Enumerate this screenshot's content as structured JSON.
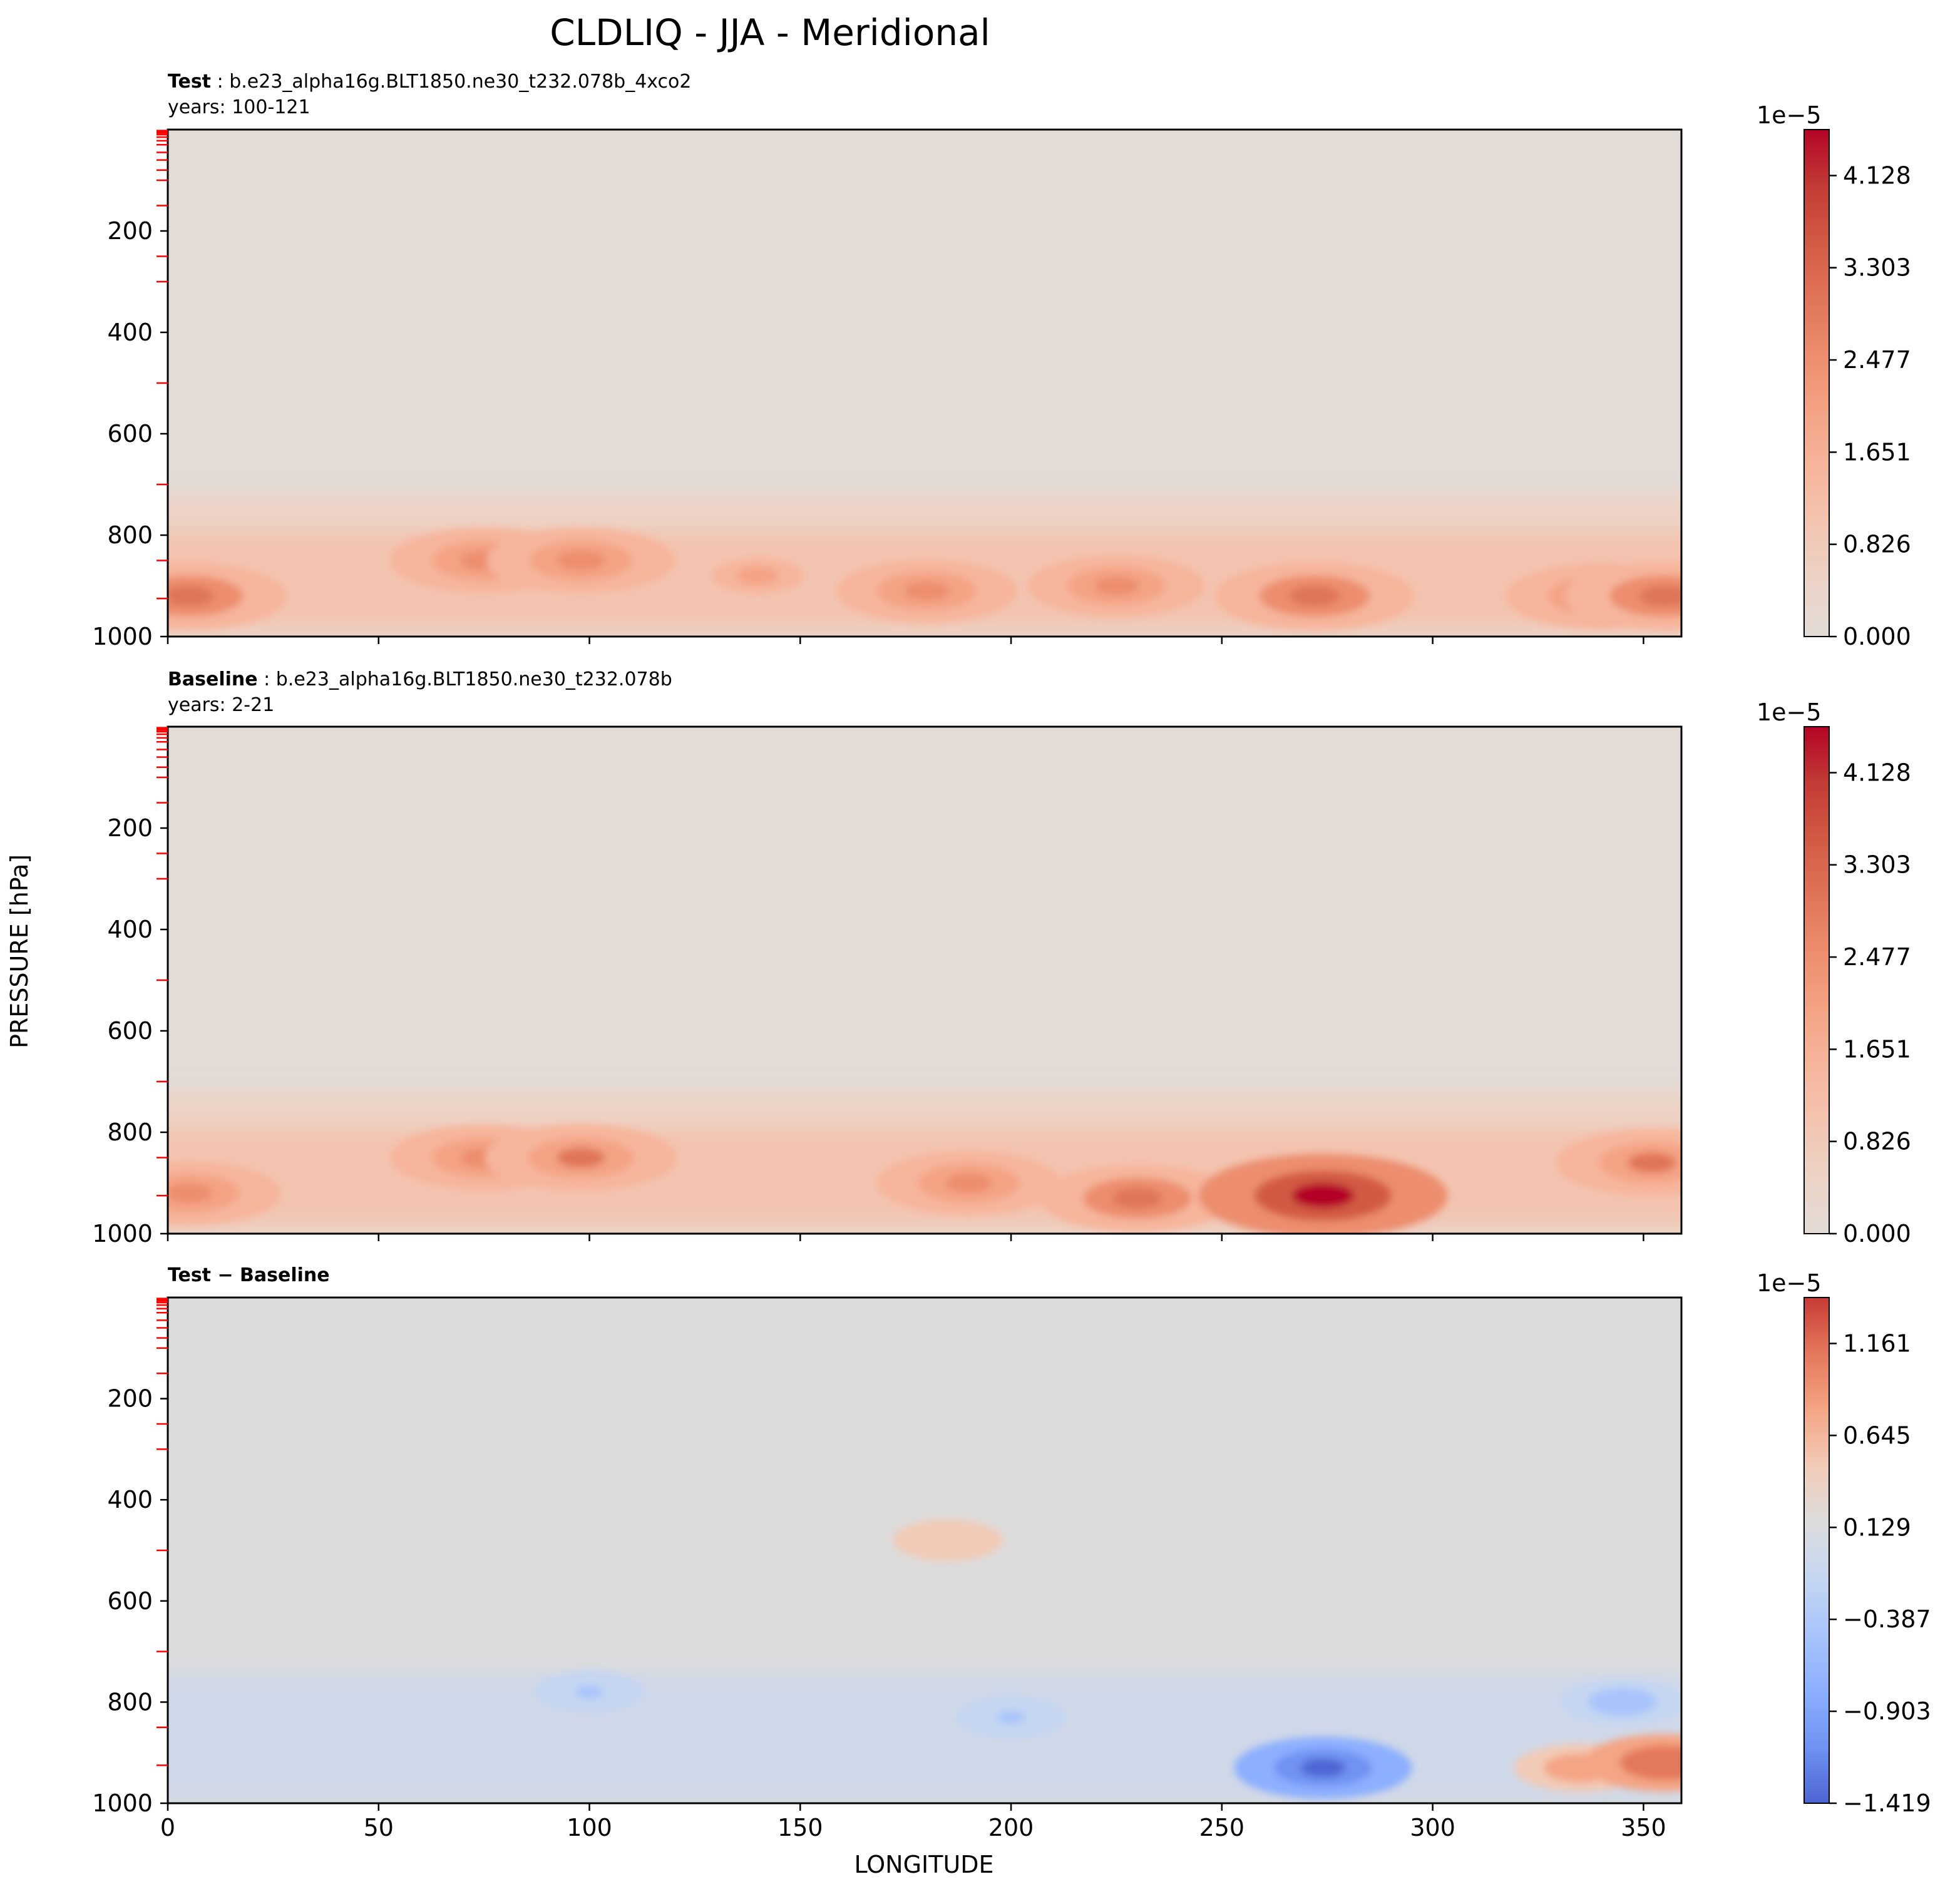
{
  "title": "CLDLIQ - JJA - Meridional",
  "colors": {
    "background_test": "#e2dbd6",
    "background_diff": "#dcdcdc",
    "warm_scale": [
      "#e2dbd6",
      "#ecd3c6",
      "#f3c4b0",
      "#f6b59b",
      "#f4a385",
      "#ec8d6e",
      "#e07458",
      "#d25a45",
      "#c23b35",
      "#b40426"
    ],
    "diff_pos_scale": [
      "#dcdcdc",
      "#f2cbb7",
      "#f4a585",
      "#e4785c",
      "#c83b36"
    ],
    "diff_neg_scale": [
      "#dcdcdc",
      "#c5d6f2",
      "#a8c4fb",
      "#8caffe",
      "#6f92f3",
      "#4d66d4"
    ],
    "fence_ticks": "#ff0000"
  },
  "chart_data": [
    {
      "type": "contourf",
      "name": "test",
      "label_bold": "Test",
      "label_rest": " : b.e23_alpha16g.BLT1850.ne30_t232.078b_4xco2",
      "years": "years: 100-121",
      "xlim": [
        0,
        359
      ],
      "ylim": [
        1000,
        0
      ],
      "yticks": [
        "200",
        "400",
        "600",
        "800",
        "1000"
      ],
      "ytick_values": [
        200,
        400,
        600,
        800,
        1000
      ],
      "xticks": [
        0,
        50,
        100,
        150,
        200,
        250,
        300,
        350
      ],
      "colorbar": {
        "multiplier": "1e−5",
        "ticks": [
          "0.000",
          "0.826",
          "1.651",
          "2.477",
          "3.303",
          "4.128"
        ],
        "max": 4.54
      },
      "features": [
        {
          "lon": 5,
          "p": 920,
          "value": 2.9
        },
        {
          "lon": 75,
          "p": 850,
          "value": 2.7
        },
        {
          "lon": 98,
          "p": 850,
          "value": 2.7
        },
        {
          "lon": 140,
          "p": 880,
          "value": 2.2
        },
        {
          "lon": 180,
          "p": 910,
          "value": 2.5
        },
        {
          "lon": 225,
          "p": 900,
          "value": 2.4
        },
        {
          "lon": 272,
          "p": 920,
          "value": 3.0
        },
        {
          "lon": 340,
          "p": 920,
          "value": 2.8
        },
        {
          "lon": 355,
          "p": 920,
          "value": 3.0
        }
      ]
    },
    {
      "type": "contourf",
      "name": "baseline",
      "label_bold": "Baseline",
      "label_rest": " : b.e23_alpha16g.BLT1850.ne30_t232.078b",
      "years": "years: 2-21",
      "xlim": [
        0,
        359
      ],
      "ylim": [
        1000,
        0
      ],
      "yticks": [
        "200",
        "400",
        "600",
        "800",
        "1000"
      ],
      "ytick_values": [
        200,
        400,
        600,
        800,
        1000
      ],
      "xticks": [
        0,
        50,
        100,
        150,
        200,
        250,
        300,
        350
      ],
      "colorbar": {
        "multiplier": "1e−5",
        "ticks": [
          "0.000",
          "0.826",
          "1.651",
          "2.477",
          "3.303",
          "4.128"
        ],
        "max": 4.54
      },
      "features": [
        {
          "lon": 5,
          "p": 920,
          "value": 2.6
        },
        {
          "lon": 75,
          "p": 850,
          "value": 2.7
        },
        {
          "lon": 98,
          "p": 850,
          "value": 2.8
        },
        {
          "lon": 190,
          "p": 900,
          "value": 2.6
        },
        {
          "lon": 230,
          "p": 930,
          "value": 2.9
        },
        {
          "lon": 274,
          "p": 925,
          "value": 4.3
        },
        {
          "lon": 352,
          "p": 860,
          "value": 2.8
        }
      ]
    },
    {
      "type": "contourf",
      "name": "difference",
      "label_bold": "Test − Baseline",
      "label_rest": "",
      "years": "",
      "xlim": [
        0,
        359
      ],
      "ylim": [
        1000,
        0
      ],
      "yticks": [
        "200",
        "400",
        "600",
        "800",
        "1000"
      ],
      "ytick_values": [
        200,
        400,
        600,
        800,
        1000
      ],
      "xticks": [
        0,
        50,
        100,
        150,
        200,
        250,
        300,
        350
      ],
      "xlabel": "LONGITUDE",
      "colorbar": {
        "multiplier": "1e−5",
        "ticks": [
          "−1.419",
          "−0.903",
          "−0.387",
          "0.129",
          "0.645",
          "1.161"
        ],
        "min": -1.419,
        "max": 1.419
      },
      "features": [
        {
          "lon": 185,
          "p": 480,
          "value": 0.3
        },
        {
          "lon": 100,
          "p": 780,
          "value": -0.3
        },
        {
          "lon": 200,
          "p": 830,
          "value": -0.3
        },
        {
          "lon": 274,
          "p": 930,
          "value": -1.2
        },
        {
          "lon": 335,
          "p": 930,
          "value": 0.6
        },
        {
          "lon": 355,
          "p": 920,
          "value": 1.0
        },
        {
          "lon": 345,
          "p": 800,
          "value": -0.5
        }
      ]
    }
  ],
  "ylabel": "PRESSURE [hPa]",
  "xlabel": "LONGITUDE"
}
